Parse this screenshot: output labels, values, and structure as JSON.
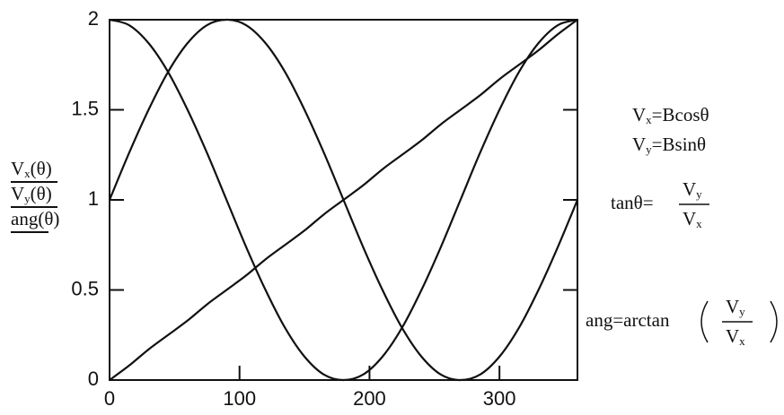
{
  "chart_data": {
    "type": "line",
    "x": [
      0,
      15,
      30,
      45,
      60,
      75,
      90,
      105,
      120,
      135,
      150,
      165,
      180,
      195,
      210,
      225,
      240,
      255,
      270,
      285,
      300,
      315,
      330,
      345,
      360
    ],
    "series": [
      {
        "name": "V",
        "name_sub": "x",
        "name_arg": "(θ)",
        "color": "#111111",
        "values": [
          2,
          1.97,
          1.87,
          1.71,
          1.5,
          1.26,
          1,
          0.74,
          0.5,
          0.29,
          0.13,
          0.03,
          0,
          0.03,
          0.13,
          0.29,
          0.5,
          0.74,
          1,
          1.26,
          1.5,
          1.71,
          1.87,
          1.97,
          2
        ]
      },
      {
        "name": "V",
        "name_sub": "y",
        "name_arg": "(θ)",
        "color": "#111111",
        "values": [
          1,
          1.26,
          1.5,
          1.71,
          1.87,
          1.97,
          2,
          1.97,
          1.87,
          1.71,
          1.5,
          1.26,
          1,
          0.74,
          0.5,
          0.29,
          0.13,
          0.03,
          0,
          0.03,
          0.13,
          0.29,
          0.5,
          0.74,
          1
        ]
      },
      {
        "name": "ang",
        "name_arg": "(θ)",
        "color": "#111111",
        "values": [
          0,
          0.08,
          0.17,
          0.25,
          0.33,
          0.42,
          0.5,
          0.58,
          0.67,
          0.75,
          0.83,
          0.92,
          1,
          1.08,
          1.17,
          1.25,
          1.33,
          1.42,
          1.5,
          1.58,
          1.67,
          1.75,
          1.83,
          1.92,
          2
        ]
      }
    ],
    "xlim": [
      0,
      360
    ],
    "xticks": [
      0,
      100,
      200,
      300
    ],
    "ylim": [
      0,
      2
    ],
    "yticks": [
      0,
      0.5,
      1,
      1.5,
      2
    ],
    "annotations": [
      {
        "text": "V",
        "sub": "x",
        "tail": "=Bcosθ"
      },
      {
        "text": "V",
        "sub": "y",
        "tail": "=Bsinθ"
      },
      {
        "text": "tanθ=",
        "num": "V",
        "num_sub": "y",
        "den": "V",
        "den_sub": "x"
      },
      {
        "text": "ang=arctan",
        "num": "V",
        "num_sub": "y",
        "den": "V",
        "den_sub": "x"
      }
    ]
  }
}
